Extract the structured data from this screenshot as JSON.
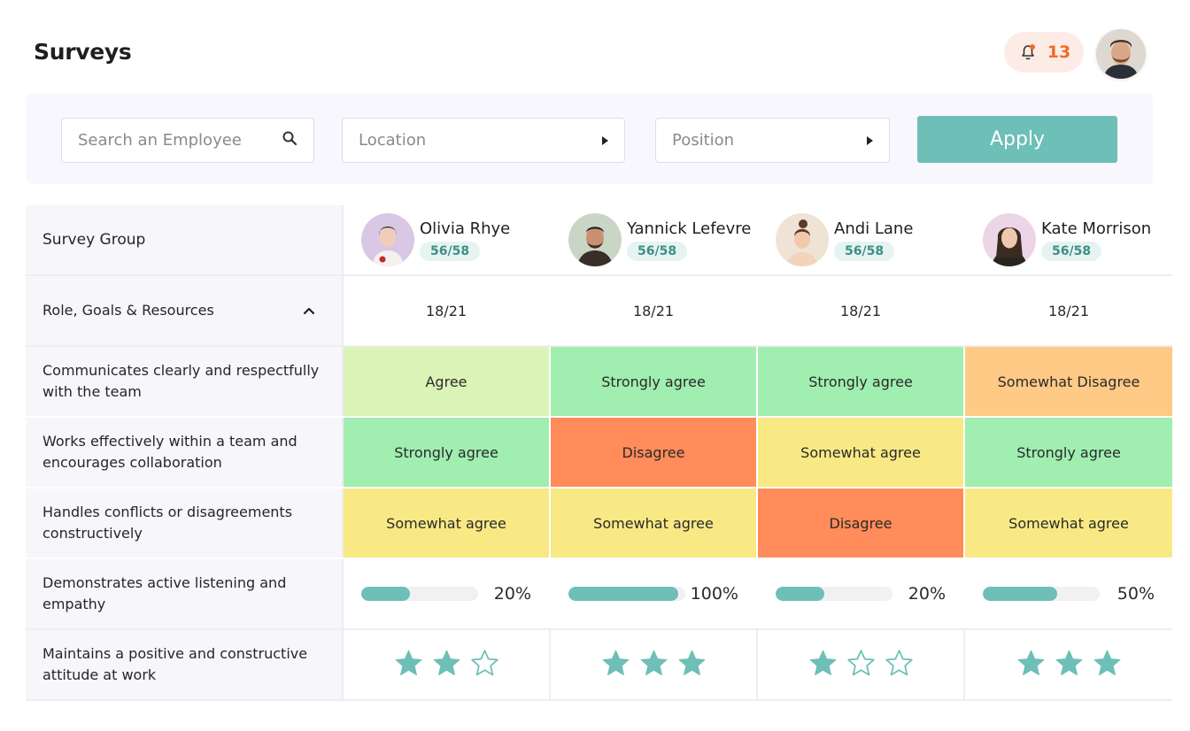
{
  "page": {
    "title": "Surveys"
  },
  "header": {
    "notification_count": "13"
  },
  "filters": {
    "search_placeholder": "Search an Employee",
    "location_label": "Location",
    "position_label": "Position",
    "apply_label": "Apply"
  },
  "table": {
    "corner_label": "Survey Group",
    "employees": [
      {
        "name": "Olivia Rhye",
        "score": "56/58"
      },
      {
        "name": "Yannick Lefevre",
        "score": "56/58"
      },
      {
        "name": "Andi Lane",
        "score": "56/58"
      },
      {
        "name": "Kate Morrison",
        "score": "56/58"
      }
    ],
    "group": {
      "label": "Role, Goals & Resources",
      "scores": [
        "18/21",
        "18/21",
        "18/21",
        "18/21"
      ]
    },
    "rows": [
      {
        "label": "Communicates clearly and respectfully with the team",
        "responses": [
          "Agree",
          "Strongly agree",
          "Strongly agree",
          "Somewhat Disagree"
        ]
      },
      {
        "label": "Works effectively within a team and encourages collaboration",
        "responses": [
          "Strongly agree",
          "Disagree",
          "Somewhat agree",
          "Strongly agree"
        ]
      },
      {
        "label": "Handles conflicts or disagreements constructively",
        "responses": [
          "Somewhat agree",
          "Somewhat agree",
          "Disagree",
          "Somewhat agree"
        ]
      }
    ],
    "progress_row": {
      "label": "Demonstrates active listening and empathy",
      "values": [
        "20%",
        "100%",
        "20%",
        "50%"
      ],
      "fill_fraction": [
        0.42,
        0.94,
        0.42,
        0.64
      ]
    },
    "stars_row": {
      "label": "Maintains a positive and constructive attitude at work",
      "ratings": [
        2,
        3,
        1,
        3
      ],
      "max": 3
    }
  },
  "colors": {
    "accent": "#6dbfb8",
    "Agree": "#dcf3b8",
    "Strongly agree": "#a0eeb0",
    "Somewhat agree": "#f8e985",
    "Disagree": "#ff8c5a",
    "Somewhat Disagree": "#ffc986"
  }
}
